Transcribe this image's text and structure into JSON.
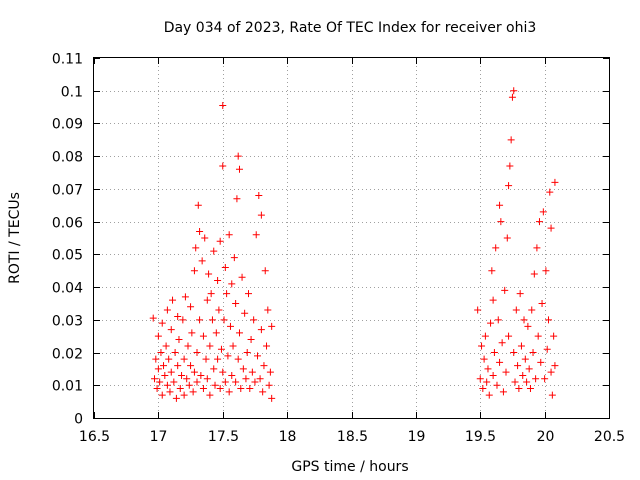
{
  "chart_data": {
    "type": "scatter",
    "title": "Day 034 of 2023, Rate Of TEC Index for receiver ohi3",
    "xlabel": "GPS time / hours",
    "ylabel": "ROTI / TECUs",
    "xlim": [
      16.5,
      20.5
    ],
    "ylim": [
      0,
      0.11
    ],
    "x_ticks": [
      "16.5",
      "17",
      "17.5",
      "18",
      "18.5",
      "19",
      "19.5",
      "20",
      "20.5"
    ],
    "y_ticks": [
      "0",
      "0.01",
      "0.02",
      "0.03",
      "0.04",
      "0.05",
      "0.06",
      "0.07",
      "0.08",
      "0.09",
      "0.1",
      "0.11"
    ],
    "grid": true,
    "marker": "plus",
    "color": "#ff0000",
    "series": [
      {
        "points": [
          [
            16.96,
            0.0305
          ],
          [
            16.97,
            0.012
          ],
          [
            16.98,
            0.018
          ],
          [
            16.99,
            0.009
          ],
          [
            17.0,
            0.015
          ],
          [
            17.0,
            0.025
          ],
          [
            17.01,
            0.011
          ],
          [
            17.02,
            0.02
          ],
          [
            17.03,
            0.007
          ],
          [
            17.03,
            0.029
          ],
          [
            17.04,
            0.016
          ],
          [
            17.05,
            0.013
          ],
          [
            17.06,
            0.022
          ],
          [
            17.07,
            0.01
          ],
          [
            17.07,
            0.033
          ],
          [
            17.08,
            0.018
          ],
          [
            17.09,
            0.008
          ],
          [
            17.1,
            0.027
          ],
          [
            17.1,
            0.014
          ],
          [
            17.11,
            0.036
          ],
          [
            17.12,
            0.011
          ],
          [
            17.13,
            0.02
          ],
          [
            17.14,
            0.006
          ],
          [
            17.15,
            0.031
          ],
          [
            17.15,
            0.016
          ],
          [
            17.16,
            0.024
          ],
          [
            17.17,
            0.009
          ],
          [
            17.18,
            0.013
          ],
          [
            17.19,
            0.03
          ],
          [
            17.2,
            0.018
          ],
          [
            17.2,
            0.007
          ],
          [
            17.21,
            0.037
          ],
          [
            17.22,
            0.012
          ],
          [
            17.23,
            0.022
          ],
          [
            17.24,
            0.01
          ],
          [
            17.25,
            0.034
          ],
          [
            17.25,
            0.016
          ],
          [
            17.26,
            0.026
          ],
          [
            17.27,
            0.008
          ],
          [
            17.28,
            0.045
          ],
          [
            17.28,
            0.014
          ],
          [
            17.29,
            0.052
          ],
          [
            17.3,
            0.02
          ],
          [
            17.3,
            0.011
          ],
          [
            17.31,
            0.065
          ],
          [
            17.32,
            0.057
          ],
          [
            17.32,
            0.03
          ],
          [
            17.33,
            0.013
          ],
          [
            17.34,
            0.048
          ],
          [
            17.35,
            0.025
          ],
          [
            17.35,
            0.009
          ],
          [
            17.36,
            0.055
          ],
          [
            17.37,
            0.018
          ],
          [
            17.38,
            0.036
          ],
          [
            17.38,
            0.012
          ],
          [
            17.39,
            0.044
          ],
          [
            17.4,
            0.022
          ],
          [
            17.4,
            0.007
          ],
          [
            17.41,
            0.038
          ],
          [
            17.42,
            0.03
          ],
          [
            17.43,
            0.015
          ],
          [
            17.43,
            0.051
          ],
          [
            17.44,
            0.01
          ],
          [
            17.45,
            0.026
          ],
          [
            17.46,
            0.042
          ],
          [
            17.46,
            0.018
          ],
          [
            17.47,
            0.033
          ],
          [
            17.48,
            0.009
          ],
          [
            17.48,
            0.054
          ],
          [
            17.49,
            0.021
          ],
          [
            17.5,
            0.0955
          ],
          [
            17.5,
            0.077
          ],
          [
            17.5,
            0.014
          ],
          [
            17.51,
            0.03
          ],
          [
            17.52,
            0.046
          ],
          [
            17.52,
            0.011
          ],
          [
            17.53,
            0.038
          ],
          [
            17.54,
            0.019
          ],
          [
            17.55,
            0.056
          ],
          [
            17.55,
            0.008
          ],
          [
            17.56,
            0.028
          ],
          [
            17.57,
            0.041
          ],
          [
            17.57,
            0.013
          ],
          [
            17.58,
            0.022
          ],
          [
            17.59,
            0.049
          ],
          [
            17.6,
            0.011
          ],
          [
            17.6,
            0.035
          ],
          [
            17.61,
            0.067
          ],
          [
            17.62,
            0.018
          ],
          [
            17.62,
            0.08
          ],
          [
            17.63,
            0.076
          ],
          [
            17.63,
            0.026
          ],
          [
            17.64,
            0.009
          ],
          [
            17.65,
            0.043
          ],
          [
            17.66,
            0.015
          ],
          [
            17.67,
            0.032
          ],
          [
            17.68,
            0.012
          ],
          [
            17.69,
            0.02
          ],
          [
            17.7,
            0.038
          ],
          [
            17.71,
            0.009
          ],
          [
            17.72,
            0.024
          ],
          [
            17.73,
            0.014
          ],
          [
            17.74,
            0.03
          ],
          [
            17.75,
            0.011
          ],
          [
            17.76,
            0.056
          ],
          [
            17.77,
            0.019
          ],
          [
            17.78,
            0.068
          ],
          [
            17.79,
            0.012
          ],
          [
            17.8,
            0.027
          ],
          [
            17.8,
            0.062
          ],
          [
            17.81,
            0.008
          ],
          [
            17.82,
            0.016
          ],
          [
            17.83,
            0.045
          ],
          [
            17.84,
            0.022
          ],
          [
            17.85,
            0.033
          ],
          [
            17.86,
            0.01
          ],
          [
            17.87,
            0.014
          ],
          [
            17.88,
            0.006
          ],
          [
            17.88,
            0.028
          ],
          [
            19.48,
            0.033
          ],
          [
            19.5,
            0.012
          ],
          [
            19.51,
            0.022
          ],
          [
            19.52,
            0.009
          ],
          [
            19.53,
            0.018
          ],
          [
            19.54,
            0.025
          ],
          [
            19.55,
            0.011
          ],
          [
            19.56,
            0.015
          ],
          [
            19.57,
            0.007
          ],
          [
            19.58,
            0.029
          ],
          [
            19.59,
            0.045
          ],
          [
            19.6,
            0.013
          ],
          [
            19.6,
            0.036
          ],
          [
            19.61,
            0.02
          ],
          [
            19.62,
            0.052
          ],
          [
            19.63,
            0.01
          ],
          [
            19.64,
            0.03
          ],
          [
            19.65,
            0.065
          ],
          [
            19.65,
            0.017
          ],
          [
            19.66,
            0.06
          ],
          [
            19.67,
            0.023
          ],
          [
            19.68,
            0.008
          ],
          [
            19.69,
            0.039
          ],
          [
            19.7,
            0.014
          ],
          [
            19.71,
            0.055
          ],
          [
            19.72,
            0.025
          ],
          [
            19.72,
            0.071
          ],
          [
            19.73,
            0.077
          ],
          [
            19.74,
            0.085
          ],
          [
            19.75,
            0.098
          ],
          [
            19.76,
            0.1
          ],
          [
            19.76,
            0.02
          ],
          [
            19.77,
            0.011
          ],
          [
            19.78,
            0.033
          ],
          [
            19.79,
            0.016
          ],
          [
            19.8,
            0.009
          ],
          [
            19.81,
            0.038
          ],
          [
            19.82,
            0.022
          ],
          [
            19.83,
            0.013
          ],
          [
            19.84,
            0.03
          ],
          [
            19.85,
            0.018
          ],
          [
            19.86,
            0.011
          ],
          [
            19.87,
            0.028
          ],
          [
            19.88,
            0.015
          ],
          [
            19.89,
            0.009
          ],
          [
            19.9,
            0.033
          ],
          [
            19.91,
            0.02
          ],
          [
            19.92,
            0.044
          ],
          [
            19.93,
            0.012
          ],
          [
            19.94,
            0.052
          ],
          [
            19.95,
            0.025
          ],
          [
            19.96,
            0.06
          ],
          [
            19.97,
            0.017
          ],
          [
            19.98,
            0.035
          ],
          [
            19.99,
            0.063
          ],
          [
            20.0,
            0.012
          ],
          [
            20.01,
            0.045
          ],
          [
            20.02,
            0.021
          ],
          [
            20.03,
            0.03
          ],
          [
            20.04,
            0.069
          ],
          [
            20.05,
            0.014
          ],
          [
            20.05,
            0.058
          ],
          [
            20.06,
            0.007
          ],
          [
            20.07,
            0.025
          ],
          [
            20.08,
            0.072
          ],
          [
            20.08,
            0.016
          ]
        ]
      }
    ]
  }
}
